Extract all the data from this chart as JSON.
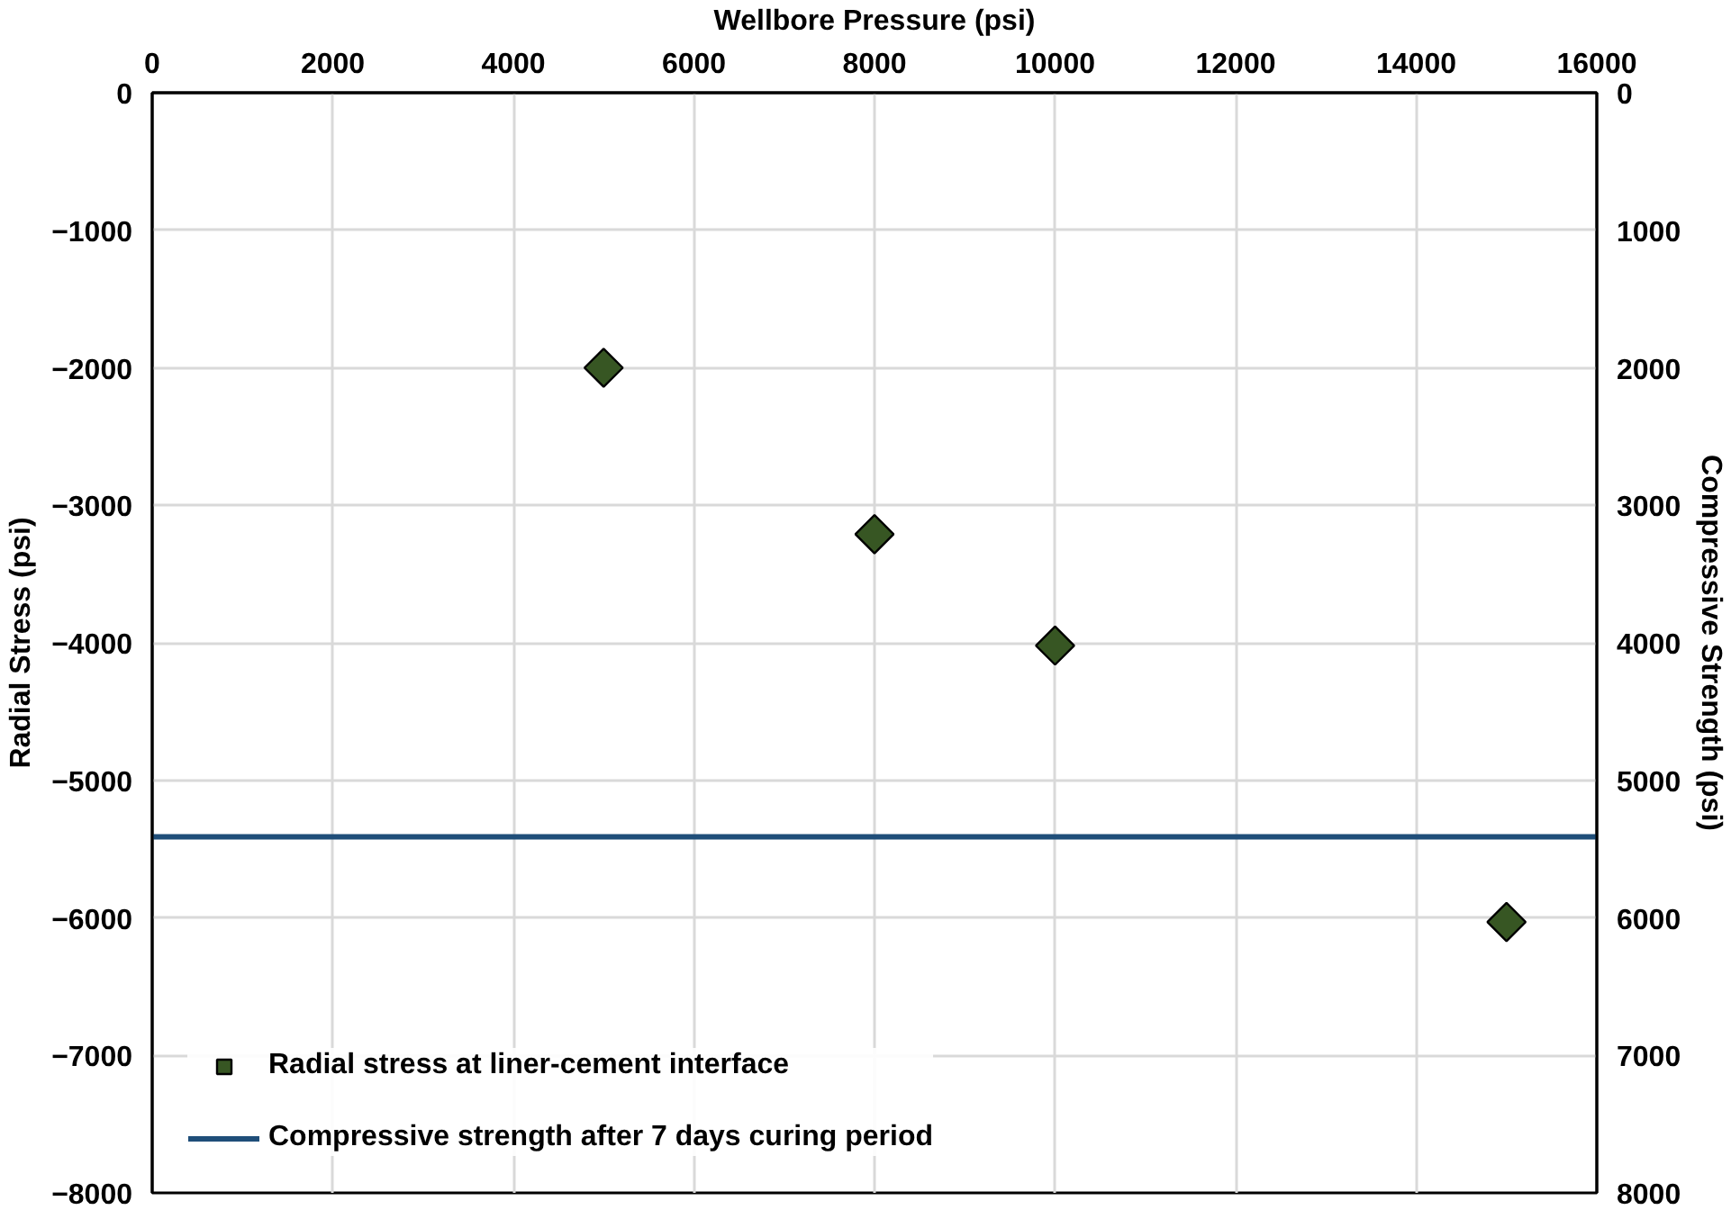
{
  "chart_data": {
    "type": "scatter",
    "xlabel": "Wellbore Pressure (psi)",
    "ylabel": "Radial Stress (psi)",
    "y2label": "Compressive Strength (psi)",
    "xlim": [
      0,
      16000
    ],
    "xticks": [
      0,
      2000,
      4000,
      6000,
      8000,
      10000,
      12000,
      14000,
      16000
    ],
    "ylim": [
      -8000,
      0
    ],
    "yticks": [
      -8000,
      -7000,
      -6000,
      -5000,
      -4000,
      -3000,
      -2000,
      -1000,
      0
    ],
    "y2lim": [
      8000,
      0
    ],
    "y2ticks": [
      0,
      1000,
      2000,
      3000,
      4000,
      5000,
      6000,
      7000,
      8000
    ],
    "grid": true,
    "legend": "bottom left",
    "series": [
      {
        "name": "Radial stress at liner-cement interface",
        "color": "#375623",
        "marker": "diamond",
        "x": [
          5000,
          8000,
          10000,
          15000
        ],
        "values": [
          -2000,
          -3210,
          -4020,
          -6030
        ]
      },
      {
        "name": "Compressive strength after 7 days curing period",
        "type": "line",
        "axis": "y2",
        "color": "#1f4e79",
        "line_style": "solid",
        "x": [
          0,
          16000
        ],
        "values": [
          5410,
          5410
        ]
      }
    ]
  }
}
